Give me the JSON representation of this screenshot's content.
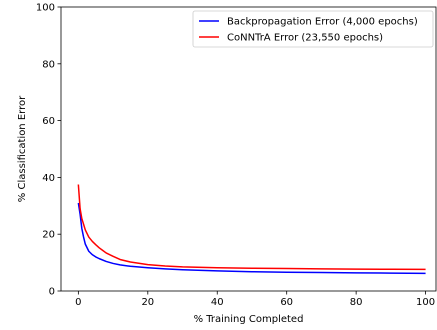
{
  "chart_data": {
    "type": "line",
    "xlabel": "% Training Completed",
    "ylabel": "% Classification Error",
    "xlim": [
      -5,
      103
    ],
    "ylim": [
      0,
      100
    ],
    "xticks": [
      0,
      20,
      40,
      60,
      80,
      100
    ],
    "yticks": [
      0,
      20,
      40,
      60,
      80,
      100
    ],
    "grid": false,
    "legend_position": "top-right",
    "series": [
      {
        "name": "Backpropagation Error (4,000 epochs)",
        "color": "#0000ff",
        "x": [
          0,
          0.5,
          1,
          1.5,
          2,
          3,
          4,
          5,
          6,
          8,
          10,
          12,
          15,
          20,
          25,
          30,
          40,
          50,
          60,
          70,
          80,
          90,
          100
        ],
        "y": [
          31,
          27,
          22,
          19,
          16.5,
          14,
          12.8,
          12,
          11.4,
          10.4,
          9.7,
          9.2,
          8.7,
          8.2,
          7.8,
          7.5,
          7.1,
          6.8,
          6.6,
          6.5,
          6.4,
          6.3,
          6.2
        ]
      },
      {
        "name": "CoNNTrA Error (23,550 epochs)",
        "color": "#ff0000",
        "x": [
          0,
          0.5,
          1,
          1.5,
          2,
          3,
          4,
          5,
          6,
          7,
          8,
          10,
          12,
          15,
          20,
          25,
          30,
          40,
          50,
          60,
          70,
          80,
          90,
          100
        ],
        "y": [
          37.5,
          29,
          25.5,
          23.5,
          21.5,
          19,
          17.5,
          16.3,
          15.2,
          14.3,
          13.4,
          12.2,
          11.1,
          10.2,
          9.3,
          8.8,
          8.5,
          8.2,
          8.0,
          7.9,
          7.8,
          7.7,
          7.65,
          7.6
        ]
      }
    ]
  }
}
